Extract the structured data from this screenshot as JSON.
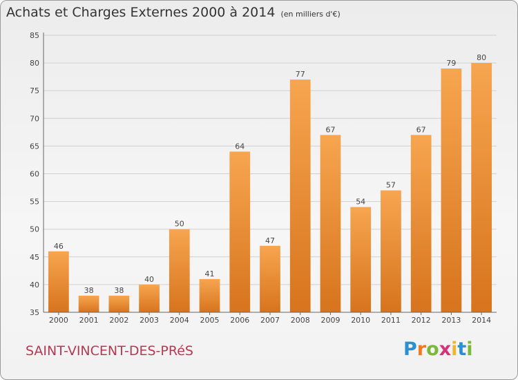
{
  "title": "Achats et Charges Externes 2000 à 2014",
  "subtitle": "(en milliers d'€)",
  "footer": "SAINT-VINCENT-DES-PRéS",
  "brand": {
    "letters": [
      "P",
      "r",
      "o",
      "x",
      "i",
      "t",
      "i"
    ],
    "colors": [
      "#2e8fd0",
      "#f07a1f",
      "#7bb83a",
      "#d6327a",
      "#f0b52a",
      "#2e8fd0",
      "#7bb83a"
    ]
  },
  "chart_data": {
    "type": "bar",
    "categories": [
      "2000",
      "2001",
      "2002",
      "2003",
      "2004",
      "2005",
      "2006",
      "2007",
      "2008",
      "2009",
      "2010",
      "2011",
      "2012",
      "2013",
      "2014"
    ],
    "values": [
      46,
      38,
      38,
      40,
      50,
      41,
      64,
      47,
      77,
      67,
      54,
      57,
      67,
      79,
      80
    ],
    "ylim": [
      35,
      85
    ],
    "yticks": [
      35,
      40,
      45,
      50,
      55,
      60,
      65,
      70,
      75,
      80,
      85
    ],
    "grid": true,
    "bar_color_top": "#f7a550",
    "bar_color_bottom": "#d7741d"
  }
}
